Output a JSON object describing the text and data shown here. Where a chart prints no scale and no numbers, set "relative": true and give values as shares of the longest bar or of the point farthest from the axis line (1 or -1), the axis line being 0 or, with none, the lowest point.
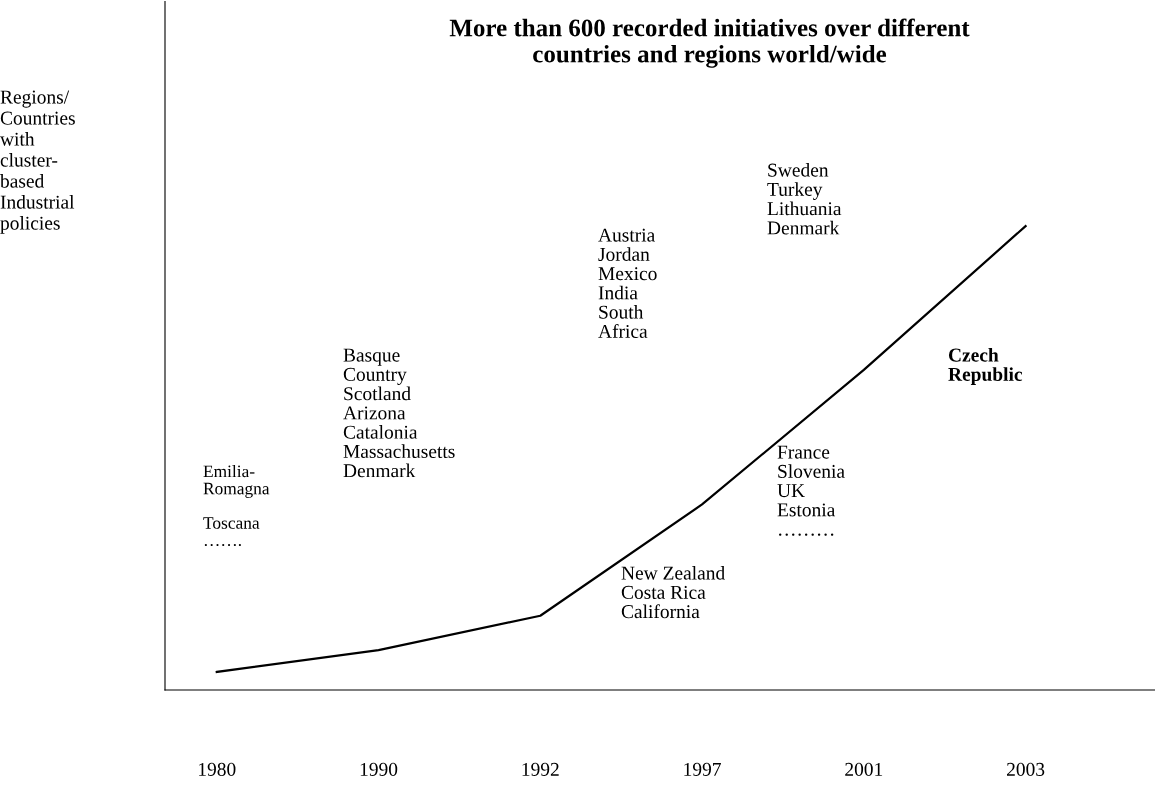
{
  "chart_data": {
    "type": "line",
    "relative": true,
    "title": "More than 600 recorded initiatives over different\ncountries and regions world/wide",
    "ylabel": "Regions/\nCountries\nwith\ncluster-\nbased\nIndustrial\npolicies",
    "categories": [
      "1980",
      "1990",
      "1992",
      "1997",
      "2001",
      "2003"
    ],
    "series": [
      {
        "color": "#000000",
        "values": [
          0.039,
          0.086,
          0.16,
          0.4,
          0.69,
          1
        ]
      }
    ],
    "annotations": [
      "Emilia-\nRomagna\n\nToscana\n…….",
      "Basque\nCountry\nScotland\nArizona\nCatalonia\nMassachusetts\nDenmark",
      "Austria\nJordan\nMexico\nIndia\nSouth\nAfrica",
      "New Zealand\nCosta Rica\nCalifornia",
      "Sweden\nTurkey\nLithuania\nDenmark",
      "France\nSlovenia\nUK\nEstonia\n………",
      "Czech\nRepublic"
    ],
    "grid": false,
    "legend": false,
    "marker": "none",
    "line_style": "solid"
  }
}
